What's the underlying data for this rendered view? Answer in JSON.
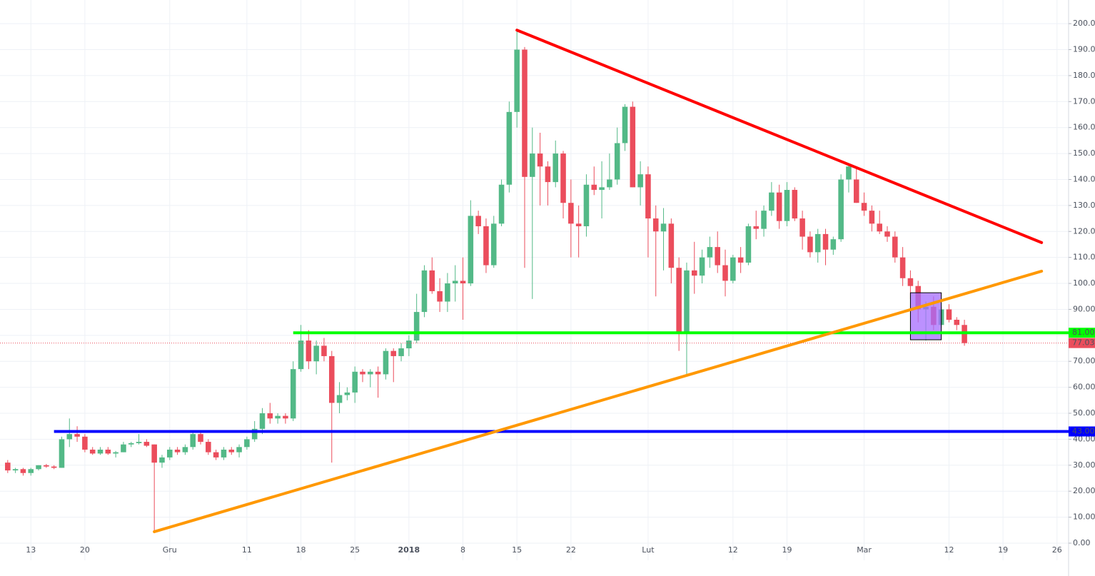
{
  "chart_data": {
    "type": "candlestick",
    "x": [
      "2017-11-10",
      "2017-11-11",
      "2017-11-12",
      "2017-11-13",
      "2017-11-14",
      "2017-11-15",
      "2017-11-16",
      "2017-11-17",
      "2017-11-18",
      "2017-11-19",
      "2017-11-20",
      "2017-11-21",
      "2017-11-22",
      "2017-11-23",
      "2017-11-24",
      "2017-11-25",
      "2017-11-26",
      "2017-11-27",
      "2017-11-28",
      "2017-11-29",
      "2017-11-30",
      "2017-12-01",
      "2017-12-02",
      "2017-12-03",
      "2017-12-04",
      "2017-12-05",
      "2017-12-06",
      "2017-12-07",
      "2017-12-08",
      "2017-12-09",
      "2017-12-10",
      "2017-12-11",
      "2017-12-12",
      "2017-12-13",
      "2017-12-14",
      "2017-12-15",
      "2017-12-16",
      "2017-12-17",
      "2017-12-18",
      "2017-12-19",
      "2017-12-20",
      "2017-12-21",
      "2017-12-22",
      "2017-12-23",
      "2017-12-24",
      "2017-12-25",
      "2017-12-26",
      "2017-12-27",
      "2017-12-28",
      "2017-12-29",
      "2017-12-30",
      "2017-12-31",
      "2018-01-01",
      "2018-01-02",
      "2018-01-03",
      "2018-01-04",
      "2018-01-05",
      "2018-01-06",
      "2018-01-07",
      "2018-01-08",
      "2018-01-09",
      "2018-01-10",
      "2018-01-11",
      "2018-01-12",
      "2018-01-13",
      "2018-01-14",
      "2018-01-15",
      "2018-01-16",
      "2018-01-17",
      "2018-01-18",
      "2018-01-19",
      "2018-01-20",
      "2018-01-21",
      "2018-01-22",
      "2018-01-23",
      "2018-01-24",
      "2018-01-25",
      "2018-01-26",
      "2018-01-27",
      "2018-01-28",
      "2018-01-29",
      "2018-01-30",
      "2018-01-31",
      "2018-02-01",
      "2018-02-02",
      "2018-02-03",
      "2018-02-04",
      "2018-02-05",
      "2018-02-06",
      "2018-02-07",
      "2018-02-08",
      "2018-02-09",
      "2018-02-10",
      "2018-02-11",
      "2018-02-12",
      "2018-02-13",
      "2018-02-14",
      "2018-02-15",
      "2018-02-16",
      "2018-02-17",
      "2018-02-18",
      "2018-02-19",
      "2018-02-20",
      "2018-02-21",
      "2018-02-22",
      "2018-02-23",
      "2018-02-24",
      "2018-02-25",
      "2018-02-26",
      "2018-02-27",
      "2018-02-28",
      "2018-03-01",
      "2018-03-02",
      "2018-03-03",
      "2018-03-04",
      "2018-03-05",
      "2018-03-06",
      "2018-03-07",
      "2018-03-08",
      "2018-03-09",
      "2018-03-10",
      "2018-03-11",
      "2018-03-12",
      "2018-03-13",
      "2018-03-14"
    ],
    "open": [
      31,
      28,
      28.5,
      27,
      28.5,
      30,
      29.5,
      29,
      40,
      42,
      41,
      36,
      34.5,
      36,
      34.5,
      35,
      38,
      38.5,
      39,
      38,
      31,
      33,
      36,
      35,
      37,
      42,
      39,
      35,
      33,
      36,
      35,
      37,
      40,
      44,
      50,
      48,
      49,
      48,
      67,
      78,
      70,
      76,
      72,
      54,
      57,
      58,
      66,
      65,
      66,
      65,
      74,
      72,
      75,
      78,
      89,
      105,
      97,
      93,
      100,
      101,
      100,
      126,
      122,
      107,
      123,
      138,
      166,
      190,
      141,
      150,
      145,
      139,
      150,
      131,
      123,
      122,
      138,
      136,
      137,
      140,
      154,
      168,
      137,
      142,
      125,
      120,
      123,
      106,
      81,
      105,
      103,
      110,
      114,
      107,
      101,
      110,
      108,
      122,
      121,
      128,
      135,
      124,
      136,
      125,
      118,
      112,
      119,
      113,
      117,
      140,
      140,
      131,
      128,
      123,
      120,
      118,
      110,
      102,
      99,
      90,
      91,
      84,
      90,
      86,
      84
    ],
    "high": [
      32,
      29,
      29,
      29,
      30,
      30.5,
      30,
      41,
      48,
      45,
      42,
      37,
      37,
      37,
      35.5,
      39,
      39,
      42,
      40,
      38,
      34,
      37,
      37,
      38,
      43,
      43,
      40,
      36,
      37,
      37,
      38,
      41,
      47,
      52,
      54,
      50,
      50,
      70,
      84,
      82,
      78,
      79,
      74,
      62,
      60,
      68,
      67,
      67,
      68,
      75,
      75,
      77,
      80,
      96,
      107,
      110,
      102,
      104,
      107,
      110,
      132,
      128,
      125,
      126,
      140,
      170,
      198,
      191,
      160,
      158,
      147,
      155,
      151,
      140,
      130,
      142,
      145,
      147,
      150,
      160,
      169,
      170,
      147,
      145,
      130,
      129,
      125,
      110,
      108,
      116,
      113,
      118,
      120,
      113,
      111,
      114,
      123,
      128,
      130,
      139,
      138,
      139,
      137,
      128,
      120,
      121,
      121,
      118,
      142,
      146,
      145,
      135,
      130,
      128,
      122,
      120,
      114,
      105,
      101,
      93,
      95,
      91,
      92,
      87,
      86
    ],
    "low": [
      27,
      27,
      26,
      26,
      28,
      29,
      28.5,
      29,
      37,
      39,
      35,
      34,
      34,
      34,
      33,
      35,
      37,
      38,
      37,
      4.5,
      29,
      32,
      34,
      34,
      36,
      38,
      34,
      32,
      32,
      34,
      33,
      36,
      39,
      42,
      46,
      46,
      46,
      47,
      66,
      67,
      65,
      70,
      31,
      50,
      55,
      54,
      62,
      60,
      56,
      63,
      62,
      70,
      72,
      77,
      87,
      96,
      89,
      89,
      93,
      86,
      99,
      119,
      104,
      106,
      122,
      135,
      160,
      106,
      94,
      130,
      130,
      137,
      125,
      110,
      110,
      118,
      134,
      125,
      136,
      138,
      151,
      137,
      130,
      110,
      95,
      105,
      100,
      74,
      65,
      96,
      100,
      106,
      104,
      95,
      100,
      104,
      107,
      117,
      118,
      126,
      121,
      122,
      124,
      113,
      110,
      108,
      107,
      111,
      116,
      135,
      131,
      126,
      120,
      119,
      116,
      108,
      99,
      94,
      85,
      78,
      82,
      83,
      85,
      82,
      76
    ],
    "close": [
      28,
      28.5,
      27,
      28.5,
      30,
      29.5,
      29,
      40,
      42,
      41,
      36,
      34.5,
      36,
      34.5,
      35,
      38,
      38.5,
      39,
      37.5,
      31,
      33,
      36,
      35,
      37,
      42,
      39,
      35,
      33,
      36,
      35,
      37,
      40,
      44,
      50,
      48,
      49,
      48,
      67,
      78,
      70,
      76,
      72,
      54,
      57,
      58,
      66,
      65,
      66,
      65,
      74,
      72,
      75,
      78,
      89,
      105,
      97,
      93,
      100,
      101,
      100,
      126,
      122,
      107,
      123,
      138,
      166,
      190,
      141,
      150,
      145,
      139,
      150,
      131,
      123,
      122,
      138,
      136,
      137,
      140,
      154,
      168,
      137,
      142,
      125,
      120,
      123,
      106,
      81,
      105,
      103,
      110,
      114,
      107,
      101,
      110,
      108,
      122,
      121,
      128,
      135,
      124,
      136,
      125,
      118,
      112,
      119,
      113,
      117,
      140,
      145,
      131,
      128,
      123,
      120,
      118,
      110,
      102,
      99,
      90,
      91,
      84,
      90,
      86,
      84,
      77.03
    ],
    "up_color": "#53b987",
    "down_color": "#eb4d5c",
    "xlim": [
      "2017-11-09",
      "2018-03-27T12:00"
    ],
    "xticks": [
      {
        "value": "2017-11-13",
        "label": "13"
      },
      {
        "value": "2017-11-20",
        "label": "20"
      },
      {
        "value": "2017-12-01",
        "label": "Gru"
      },
      {
        "value": "2017-12-11",
        "label": "11"
      },
      {
        "value": "2017-12-18",
        "label": "18"
      },
      {
        "value": "2017-12-25",
        "label": "25"
      },
      {
        "value": "2018-01-01",
        "label": "2018"
      },
      {
        "value": "2018-01-08",
        "label": "8"
      },
      {
        "value": "2018-01-15",
        "label": "15"
      },
      {
        "value": "2018-01-22",
        "label": "22"
      },
      {
        "value": "2018-02-01",
        "label": "Lut"
      },
      {
        "value": "2018-02-12",
        "label": "12"
      },
      {
        "value": "2018-02-19",
        "label": "19"
      },
      {
        "value": "2018-03-01",
        "label": "Mar"
      },
      {
        "value": "2018-03-12",
        "label": "12"
      },
      {
        "value": "2018-03-19",
        "label": "19"
      },
      {
        "value": "2018-03-26",
        "label": "26"
      }
    ],
    "ylim": [
      -6.6,
      209.1
    ],
    "yticks": [
      {
        "value": 0,
        "label": "0.00"
      },
      {
        "value": 10,
        "label": "10.00"
      },
      {
        "value": 20,
        "label": "20.00"
      },
      {
        "value": 30,
        "label": "30.00"
      },
      {
        "value": 40,
        "label": "40.00"
      },
      {
        "value": 50,
        "label": "50.00"
      },
      {
        "value": 60,
        "label": "60.00"
      },
      {
        "value": 70,
        "label": "70.00"
      },
      {
        "value": 80,
        "label": "80.00"
      },
      {
        "value": 90,
        "label": "90.00"
      },
      {
        "value": 100,
        "label": "100.00"
      },
      {
        "value": 110,
        "label": "110.00"
      },
      {
        "value": 120,
        "label": "120.00"
      },
      {
        "value": 130,
        "label": "130.00"
      },
      {
        "value": 140,
        "label": "140.00"
      },
      {
        "value": 150,
        "label": "150.00"
      },
      {
        "value": 160,
        "label": "160.00"
      },
      {
        "value": 170,
        "label": "170.00"
      },
      {
        "value": 180,
        "label": "180.00"
      },
      {
        "value": 190,
        "label": "190.00"
      },
      {
        "value": 200,
        "label": "200.00"
      }
    ],
    "grid": true,
    "trendlines": [
      {
        "color": "#ff0000",
        "x": [
          "2018-01-15",
          "2018-03-24"
        ],
        "y": [
          197.5,
          115.7
        ]
      },
      {
        "color": "#ff9800",
        "x": [
          "2017-11-29",
          "2018-03-24"
        ],
        "y": [
          4.4,
          104.7
        ]
      }
    ],
    "hlines": [
      {
        "color": "#00ff00",
        "text_color": "#000000",
        "x_start": "2017-12-17",
        "value": 81,
        "label": "81.00"
      },
      {
        "color": "#0000ff",
        "text_color": "#ffffff",
        "x_start": "2017-11-16",
        "value": 43,
        "label": "43.00"
      }
    ],
    "box": {
      "color": "#a66cff",
      "x": [
        "2018-03-07",
        "2018-03-11"
      ],
      "y": [
        78.3,
        96.4
      ]
    },
    "last_price": {
      "value": 77.03,
      "label": "77.03",
      "color": "#eb4d5c"
    }
  }
}
